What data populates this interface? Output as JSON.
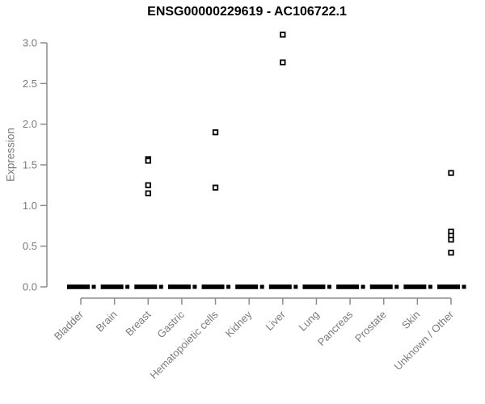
{
  "chart_data": {
    "type": "scatter",
    "title": "ENSG00000229619 - AC106722.1",
    "xlabel": "",
    "ylabel": "Expression",
    "ylim": [
      0,
      3.15
    ],
    "yticks": [
      0.0,
      0.5,
      1.0,
      1.5,
      2.0,
      2.5,
      3.0
    ],
    "ytick_labels": [
      "0.0",
      "0.5",
      "1.0",
      "1.5",
      "2.0",
      "2.5",
      "3.0"
    ],
    "grid": false,
    "legend": "none",
    "marker": "open-square",
    "categories": [
      "Bladder",
      "Brain",
      "Breast",
      "Gastric",
      "Hematopoietic cells",
      "Kidney",
      "Liver",
      "Lung",
      "Pancreas",
      "Prostate",
      "Skin",
      "Unknown / Other"
    ],
    "series": [
      {
        "name": "Expression",
        "zero_cluster_all_categories": true,
        "nonzero_values_by_category": {
          "Breast": [
            1.57,
            1.55,
            1.25,
            1.15
          ],
          "Hematopoietic cells": [
            1.9,
            1.22
          ],
          "Liver": [
            3.1,
            2.76
          ],
          "Unknown / Other": [
            1.4,
            0.68,
            0.63,
            0.58,
            0.42
          ]
        }
      }
    ],
    "colors": {
      "points": "#000000",
      "axis": "#8c8c8c",
      "tick_text": "#7a7a7a",
      "title": "#000000",
      "background": "#ffffff"
    }
  }
}
